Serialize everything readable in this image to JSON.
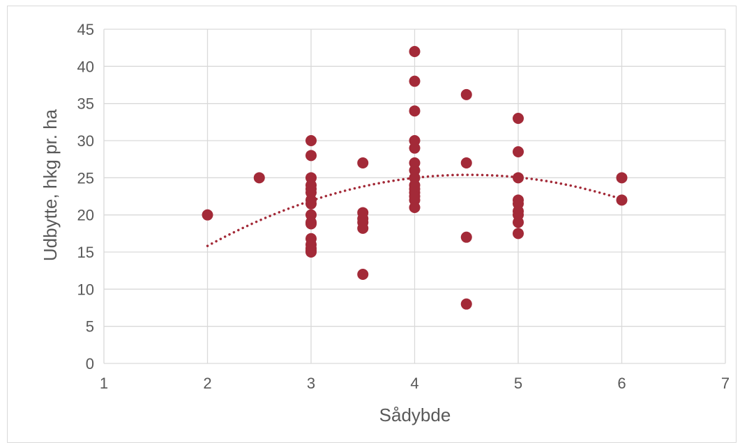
{
  "chart_data": {
    "type": "scatter",
    "title": "",
    "xlabel": "Sådybde",
    "ylabel": "Udbytte, hkg pr. ha",
    "xlim": [
      1,
      7
    ],
    "ylim": [
      0,
      45
    ],
    "x_ticks": [
      1,
      2,
      3,
      4,
      5,
      6,
      7
    ],
    "y_ticks": [
      0,
      5,
      10,
      15,
      20,
      25,
      30,
      35,
      40,
      45
    ],
    "grid": true,
    "legend": "none",
    "marker_color": "#a32a38",
    "trendline": {
      "type": "polynomial-2",
      "style": "dotted",
      "color": "#a32a38",
      "x_range": [
        2,
        6
      ],
      "points": [
        [
          2,
          15.7
        ],
        [
          3,
          22.2
        ],
        [
          4,
          24.9
        ],
        [
          4.6,
          25.3
        ],
        [
          5,
          25.0
        ],
        [
          6,
          22.2
        ]
      ]
    },
    "series": [
      {
        "x": [
          2,
          2.5,
          3,
          3,
          3,
          3,
          3,
          3,
          3,
          3,
          3,
          3,
          3,
          3,
          3,
          3,
          3,
          3,
          3.5,
          3.5,
          3.5,
          3.5,
          3.5,
          3.5,
          4,
          4,
          4,
          4,
          4,
          4,
          4,
          4,
          4,
          4,
          4,
          4,
          4,
          4,
          4.5,
          4.5,
          4.5,
          4.5,
          5,
          5,
          5,
          5,
          5,
          5,
          5,
          5,
          5,
          6,
          6
        ],
        "y": [
          20,
          25,
          30,
          28,
          25,
          24,
          23.5,
          23,
          22,
          21.5,
          20,
          19,
          18.8,
          16.8,
          16,
          15.5,
          15,
          15.2,
          27,
          20.3,
          19.5,
          19,
          18.2,
          12,
          42,
          38,
          34,
          30,
          29,
          27,
          26,
          25,
          24,
          23.5,
          23,
          22.5,
          22,
          21,
          36.2,
          27,
          17,
          8,
          33,
          28.5,
          25,
          22,
          21.5,
          20.5,
          20,
          19,
          17.5,
          25,
          22
        ]
      }
    ]
  }
}
